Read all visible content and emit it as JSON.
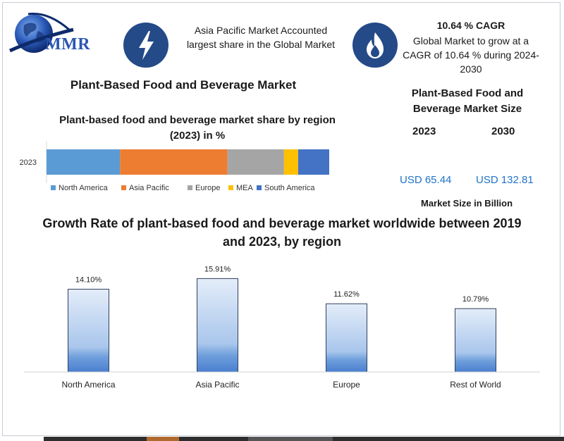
{
  "header": {
    "logo_text": "MMR",
    "accounted_text": "Asia Pacific Market Accounted largest share in the Global Market",
    "cagr_title": "10.64 % CAGR",
    "cagr_text": "Global Market to grow at a CAGR of 10.64 % during 2024-2030"
  },
  "market_title": "Plant-Based Food and Beverage Market",
  "market_size": {
    "title": "Plant-Based Food and Beverage Market Size",
    "year_2023": "2023",
    "year_2030": "2030",
    "value_2023": "USD 65.44",
    "value_2030": "USD 132.81",
    "unit_note": "Market Size in Billion"
  },
  "colors": {
    "icon_circle": "#244a87",
    "north_america": "#5b9bd5",
    "asia_pacific": "#ed7d31",
    "europe": "#a5a5a5",
    "mea": "#ffc000",
    "south_america": "#4472c4",
    "usd_text": "#1f73c9"
  },
  "chart_data": [
    {
      "type": "bar",
      "orientation": "horizontal-stacked",
      "title": "Plant-based food and beverage market share by region (2023) in %",
      "categories": [
        "2023"
      ],
      "series": [
        {
          "name": "North America",
          "values": [
            26
          ]
        },
        {
          "name": "Asia Pacific",
          "values": [
            38
          ]
        },
        {
          "name": "Europe",
          "values": [
            20
          ]
        },
        {
          "name": "MEA",
          "values": [
            5
          ]
        },
        {
          "name": "South America",
          "values": [
            11
          ]
        }
      ],
      "legend": "bottom",
      "xlim": [
        0,
        100
      ]
    },
    {
      "type": "bar",
      "title": "Growth Rate of plant-based food and beverage market worldwide between 2019 and 2023, by region",
      "categories": [
        "North America",
        "Asia Pacific",
        "Europe",
        "Rest of World"
      ],
      "values": [
        14.1,
        15.91,
        11.62,
        10.79
      ],
      "data_labels": [
        "14.10%",
        "15.91%",
        "11.62%",
        "10.79%"
      ],
      "ylim": [
        0,
        18
      ],
      "grid": false
    }
  ]
}
